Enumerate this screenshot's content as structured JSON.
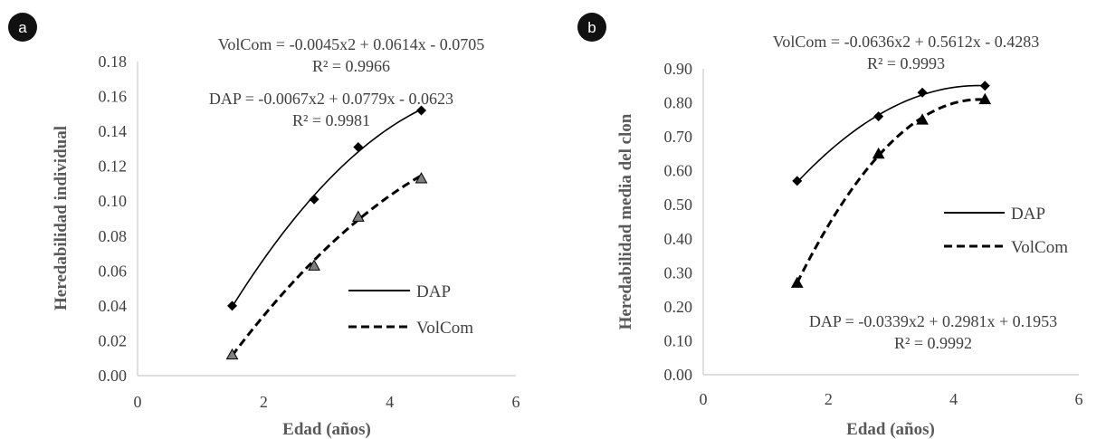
{
  "chart_data": [
    {
      "panel_label": "a",
      "type": "scatter",
      "xlabel": "Edad (años)",
      "ylabel": "Heredabilidad individual",
      "xlim": [
        0,
        6
      ],
      "ylim": [
        0,
        0.18
      ],
      "x_ticks": [
        "0",
        "2",
        "4",
        "6"
      ],
      "y_ticks": [
        "0.00",
        "0.02",
        "0.04",
        "0.06",
        "0.08",
        "0.10",
        "0.12",
        "0.14",
        "0.16",
        "0.18"
      ],
      "grid": false,
      "legend_position": "right",
      "series": [
        {
          "name": "DAP",
          "x": [
            1.5,
            2.8,
            3.5,
            4.5
          ],
          "y": [
            0.04,
            0.101,
            0.131,
            0.152
          ],
          "marker": "diamond",
          "line": "solid",
          "trend": [
            -0.0067,
            0.0779,
            -0.0623
          ]
        },
        {
          "name": "VolCom",
          "x": [
            1.5,
            2.8,
            3.5,
            4.5
          ],
          "y": [
            0.012,
            0.063,
            0.091,
            0.113
          ],
          "marker": "triangle",
          "line": "dashed",
          "trend": [
            -0.0045,
            0.0614,
            -0.0705
          ]
        }
      ],
      "annotations": [
        {
          "eq": "VolCom = -0.0045x2 + 0.0614x - 0.0705",
          "r2": "R² = 0.9966"
        },
        {
          "eq": "DAP = -0.0067x2 + 0.0779x - 0.0623",
          "r2": "R² = 0.9981"
        }
      ]
    },
    {
      "panel_label": "b",
      "type": "scatter",
      "xlabel": "Edad (años)",
      "ylabel": "Heredabilidad media del clon",
      "xlim": [
        0,
        6
      ],
      "ylim": [
        0,
        0.9
      ],
      "x_ticks": [
        "0",
        "2",
        "4",
        "6"
      ],
      "y_ticks": [
        "0.00",
        "0.10",
        "0.20",
        "0.30",
        "0.40",
        "0.50",
        "0.60",
        "0.70",
        "0.80",
        "0.90"
      ],
      "grid": false,
      "legend_position": "right",
      "series": [
        {
          "name": "DAP",
          "x": [
            1.5,
            2.8,
            3.5,
            4.5
          ],
          "y": [
            0.57,
            0.76,
            0.83,
            0.85
          ],
          "marker": "diamond",
          "line": "solid",
          "trend": [
            -0.0339,
            0.2981,
            0.1953
          ]
        },
        {
          "name": "VolCom",
          "x": [
            1.5,
            2.8,
            3.5,
            4.5
          ],
          "y": [
            0.27,
            0.65,
            0.75,
            0.81
          ],
          "marker": "triangle",
          "line": "dashed",
          "trend": [
            -0.0636,
            0.5612,
            -0.4283
          ]
        }
      ],
      "annotations": [
        {
          "eq": "VolCom = -0.0636x2 + 0.5612x - 0.4283",
          "r2": "R² = 0.9993"
        },
        {
          "eq": "DAP = -0.0339x2 + 0.2981x + 0.1953",
          "r2": "R² = 0.9992"
        }
      ]
    }
  ]
}
